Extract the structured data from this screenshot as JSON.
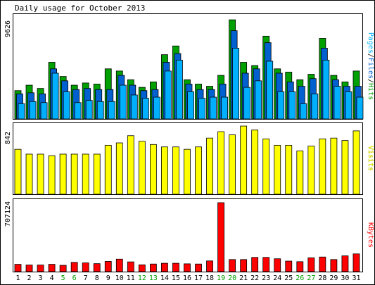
{
  "chart_data": {
    "type": "bar",
    "title": "Daily usage for October 2013",
    "categories": [
      "1",
      "2",
      "3",
      "4",
      "5",
      "6",
      "7",
      "8",
      "9",
      "10",
      "11",
      "12",
      "13",
      "14",
      "15",
      "16",
      "17",
      "18",
      "19",
      "20",
      "21",
      "22",
      "23",
      "24",
      "25",
      "26",
      "27",
      "28",
      "29",
      "30",
      "31"
    ],
    "weekend_days": [
      "5",
      "6",
      "12",
      "13",
      "19",
      "20",
      "26",
      "27"
    ],
    "colors": {
      "hits": "#00a000",
      "files": "#0060d0",
      "pages": "#00b0ff",
      "visits": "#ffff00",
      "kbytes": "#ff0000",
      "weekend_label": "#00a000",
      "weekday_label": "#000000"
    },
    "panels": [
      {
        "name": "hits-files-pages",
        "max_label": "9626",
        "ymax": 9626,
        "right_label_parts": [
          {
            "text": "Pages",
            "color": "#00b0ff"
          },
          {
            "text": "/",
            "color": "#000000"
          },
          {
            "text": "Files",
            "color": "#0060d0"
          },
          {
            "text": "/",
            "color": "#000000"
          },
          {
            "text": "Hits",
            "color": "#00a000"
          }
        ],
        "series": [
          {
            "name": "Hits",
            "color": "#00a000",
            "values": [
              2600,
              3100,
              2800,
              5200,
              3900,
              3100,
              3300,
              3200,
              4600,
              4400,
              3600,
              2900,
              3400,
              5900,
              6700,
              3600,
              3200,
              3000,
              4000,
              9100,
              5200,
              4900,
              7600,
              4600,
              4300,
              3600,
              4100,
              7400,
              4000,
              3400,
              4400
            ]
          },
          {
            "name": "Files",
            "color": "#0060d0",
            "values": [
              2300,
              2400,
              2300,
              4600,
              3500,
              2700,
              2800,
              2700,
              2700,
              4000,
              3100,
              2600,
              2700,
              5200,
              6000,
              3200,
              2700,
              2700,
              3200,
              8100,
              4200,
              4600,
              7000,
              4200,
              3400,
              3000,
              3700,
              6500,
              3600,
              3000,
              3000
            ]
          },
          {
            "name": "Pages",
            "color": "#00b0ff",
            "values": [
              1400,
              1600,
              1500,
              4200,
              2500,
              1500,
              1700,
              1600,
              1600,
              3100,
              2200,
              1900,
              2000,
              4400,
              5400,
              2500,
              1900,
              2000,
              2000,
              6500,
              2900,
              3500,
              5300,
              2500,
              2500,
              1400,
              2300,
              5400,
              3000,
              2500,
              2000
            ]
          }
        ]
      },
      {
        "name": "visits",
        "max_label": "842",
        "ymax": 842,
        "right_label_parts": [
          {
            "text": "Visits",
            "color": "#ffff00"
          }
        ],
        "series": [
          {
            "name": "Visits",
            "color": "#ffff00",
            "values": [
              560,
              500,
              500,
              480,
              500,
              500,
              500,
              500,
              610,
              640,
              730,
              660,
              620,
              590,
              590,
              560,
              590,
              700,
              780,
              740,
              850,
              800,
              690,
              610,
              610,
              540,
              600,
              690,
              700,
              670,
              790
            ]
          }
        ]
      },
      {
        "name": "kbytes",
        "max_label": "707124",
        "ymax": 707124,
        "right_label_parts": [
          {
            "text": "KBytes",
            "color": "#ff0000"
          }
        ],
        "series": [
          {
            "name": "KBytes",
            "color": "#ff0000",
            "values": [
              75000,
              68000,
              68000,
              75000,
              65000,
              95000,
              90000,
              82000,
              105000,
              128000,
              100000,
              70000,
              78000,
              86000,
              86000,
              80000,
              78000,
              110000,
              707124,
              124000,
              124000,
              146000,
              146000,
              132000,
              108000,
              102000,
              142000,
              150000,
              124000,
              162000,
              182000
            ]
          }
        ]
      }
    ]
  }
}
